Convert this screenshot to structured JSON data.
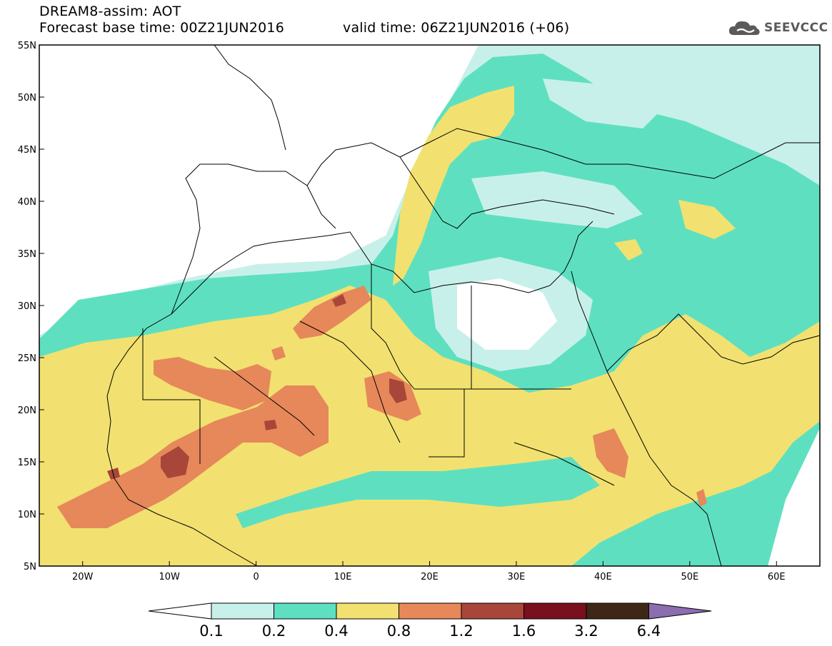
{
  "header": {
    "title": "DREAM8-assim: AOT",
    "base_time": "Forecast base time: 00Z21JUN2016",
    "valid_time": "valid time: 06Z21JUN2016 (+06)"
  },
  "logo": {
    "text": "SEEVCCC",
    "icon": "cloud-icon"
  },
  "map": {
    "lon_range": [
      -25,
      65
    ],
    "lat_range": [
      5,
      55
    ],
    "lon_ticks": [
      {
        "lon": -20,
        "label": "20W"
      },
      {
        "lon": -10,
        "label": "10W"
      },
      {
        "lon": 0,
        "label": "0"
      },
      {
        "lon": 10,
        "label": "10E"
      },
      {
        "lon": 20,
        "label": "20E"
      },
      {
        "lon": 30,
        "label": "30E"
      },
      {
        "lon": 40,
        "label": "40E"
      },
      {
        "lon": 50,
        "label": "50E"
      },
      {
        "lon": 60,
        "label": "60E"
      }
    ],
    "lat_ticks": [
      {
        "lat": 55,
        "label": "55N"
      },
      {
        "lat": 50,
        "label": "50N"
      },
      {
        "lat": 45,
        "label": "45N"
      },
      {
        "lat": 40,
        "label": "40N"
      },
      {
        "lat": 35,
        "label": "35N"
      },
      {
        "lat": 30,
        "label": "30N"
      },
      {
        "lat": 25,
        "label": "25N"
      },
      {
        "lat": 20,
        "label": "20N"
      },
      {
        "lat": 15,
        "label": "15N"
      },
      {
        "lat": 10,
        "label": "10N"
      },
      {
        "lat": 5,
        "label": "5N"
      }
    ],
    "field": "Aerosol Optical Thickness"
  },
  "colorbar": {
    "levels": [
      "0.1",
      "0.2",
      "0.4",
      "0.8",
      "1.2",
      "1.6",
      "3.2",
      "6.4"
    ],
    "colors": [
      "#c8f0ea",
      "#5ee0c0",
      "#f2e170",
      "#e6885a",
      "#a9463a",
      "#7a0f1e",
      "#3e2716",
      "#8c6db0"
    ]
  }
}
